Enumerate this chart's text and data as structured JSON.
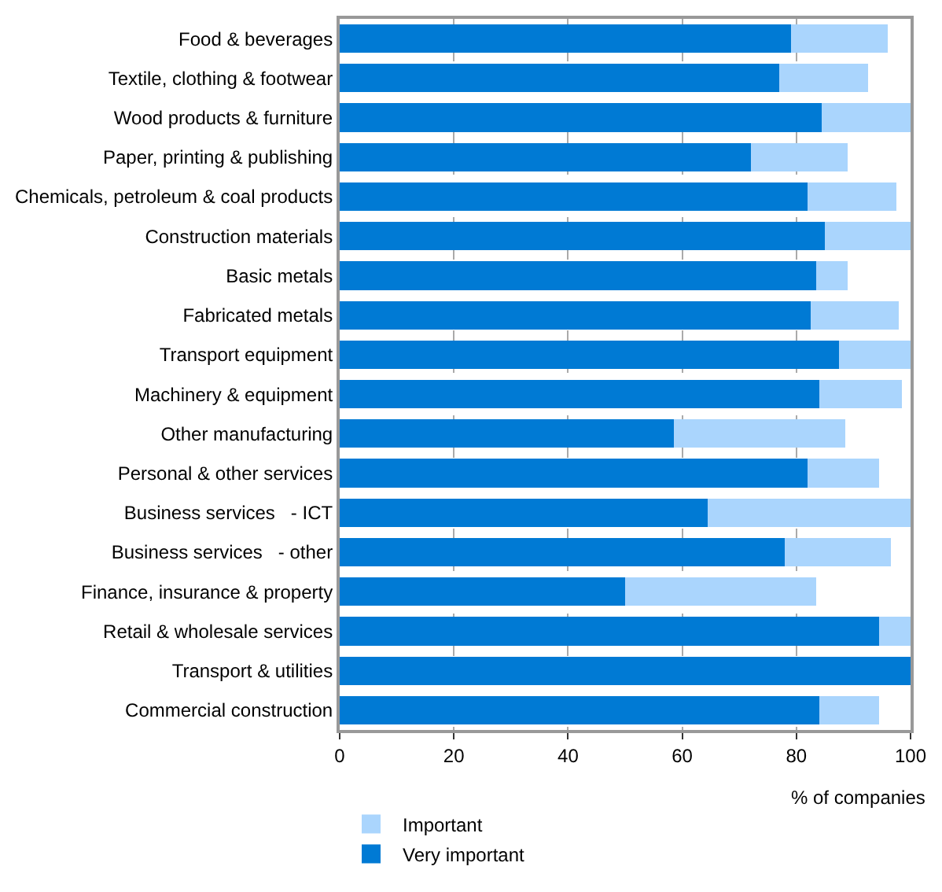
{
  "chart_data": {
    "type": "bar",
    "orientation": "horizontal",
    "stacked": true,
    "categories": [
      "Food & beverages",
      "Textile, clothing & footwear",
      "Wood products & furniture",
      "Paper, printing & publishing",
      "Chemicals, petroleum & coal products",
      "Construction materials",
      "Basic metals",
      "Fabricated metals",
      "Transport equipment",
      "Machinery & equipment",
      "Other manufacturing",
      "Personal & other services",
      "Business services   - ICT",
      "Business services   - other",
      "Finance, insurance & property",
      "Retail & wholesale services",
      "Transport & utilities",
      "Commercial construction"
    ],
    "series": [
      {
        "name": "Very important",
        "color": "#007ad4",
        "values": [
          79,
          77,
          84.5,
          72,
          82,
          85,
          83.5,
          82.5,
          87.5,
          84,
          58.5,
          82,
          64.5,
          78,
          50,
          94.5,
          100,
          84
        ]
      },
      {
        "name": "Important",
        "color": "#aad5fd",
        "values": [
          17,
          15.5,
          15.5,
          17,
          15.5,
          15,
          5.5,
          15.5,
          12.5,
          14.5,
          30,
          12.5,
          35.5,
          18.5,
          33.5,
          5.5,
          0,
          10.5
        ]
      }
    ],
    "xlabel": "% of companies",
    "xlim": [
      0,
      100
    ],
    "xticks": [
      0,
      20,
      40,
      60,
      80,
      100
    ],
    "grid": "x",
    "legend": "bottom"
  }
}
